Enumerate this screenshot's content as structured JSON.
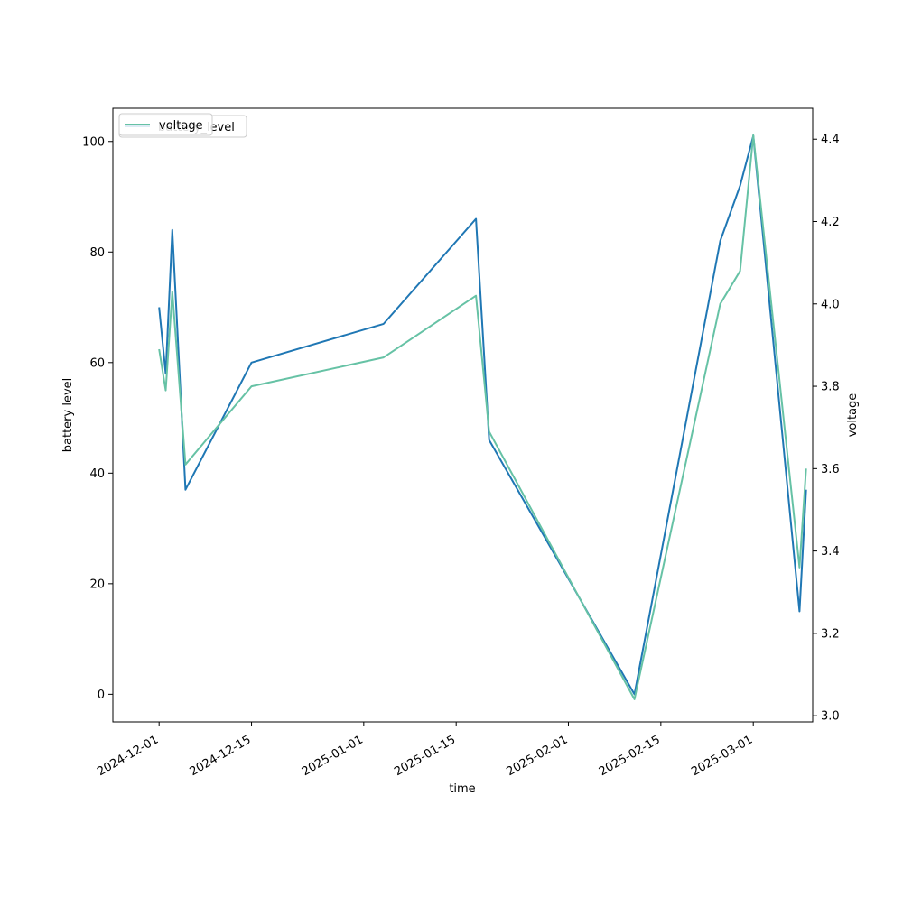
{
  "chart_data": {
    "type": "line",
    "title": "",
    "xlabel": "time",
    "ylabel_left": "battery level",
    "ylabel_right": "voltage",
    "xlim": [
      "2024-11-24",
      "2025-03-10"
    ],
    "ylim_left": [
      -5,
      106
    ],
    "ylim_right": [
      2.985,
      4.475
    ],
    "x_ticks": [
      "2024-12-01",
      "2024-12-15",
      "2025-01-01",
      "2025-01-15",
      "2025-02-01",
      "2025-02-15",
      "2025-03-01"
    ],
    "y_ticks_left": [
      0,
      20,
      40,
      60,
      80,
      100
    ],
    "y_ticks_right": [
      "3.0",
      "3.2",
      "3.4",
      "3.6",
      "3.8",
      "4.0",
      "4.2",
      "4.4"
    ],
    "grid": false,
    "legend_position": "top-left",
    "series": [
      {
        "name": "battery_level",
        "axis": "left",
        "color": "#1f77b4",
        "points": [
          {
            "x": "2024-12-01",
            "y": 70
          },
          {
            "x": "2024-12-02",
            "y": 58
          },
          {
            "x": "2024-12-03",
            "y": 84
          },
          {
            "x": "2024-12-05",
            "y": 37
          },
          {
            "x": "2024-12-15",
            "y": 60
          },
          {
            "x": "2025-01-04",
            "y": 67
          },
          {
            "x": "2025-01-18",
            "y": 86
          },
          {
            "x": "2025-01-20",
            "y": 46
          },
          {
            "x": "2025-02-11",
            "y": 0
          },
          {
            "x": "2025-02-24",
            "y": 82
          },
          {
            "x": "2025-02-27",
            "y": 92
          },
          {
            "x": "2025-03-01",
            "y": 101
          },
          {
            "x": "2025-03-08",
            "y": 15
          },
          {
            "x": "2025-03-09",
            "y": 37
          }
        ]
      },
      {
        "name": "voltage",
        "axis": "right",
        "color": "#66c2a5",
        "points": [
          {
            "x": "2024-12-01",
            "y": 3.89
          },
          {
            "x": "2024-12-02",
            "y": 3.79
          },
          {
            "x": "2024-12-03",
            "y": 4.03
          },
          {
            "x": "2024-12-05",
            "y": 3.61
          },
          {
            "x": "2024-12-15",
            "y": 3.8
          },
          {
            "x": "2025-01-04",
            "y": 3.87
          },
          {
            "x": "2025-01-18",
            "y": 4.02
          },
          {
            "x": "2025-01-20",
            "y": 3.69
          },
          {
            "x": "2025-02-11",
            "y": 3.04
          },
          {
            "x": "2025-02-24",
            "y": 4.0
          },
          {
            "x": "2025-02-27",
            "y": 4.08
          },
          {
            "x": "2025-03-01",
            "y": 4.41
          },
          {
            "x": "2025-03-08",
            "y": 3.36
          },
          {
            "x": "2025-03-09",
            "y": 3.6
          }
        ]
      }
    ],
    "legend_entries": [
      {
        "label": "battery_level",
        "color": "#1f77b4"
      },
      {
        "label": "voltage",
        "color": "#66c2a5"
      }
    ]
  }
}
